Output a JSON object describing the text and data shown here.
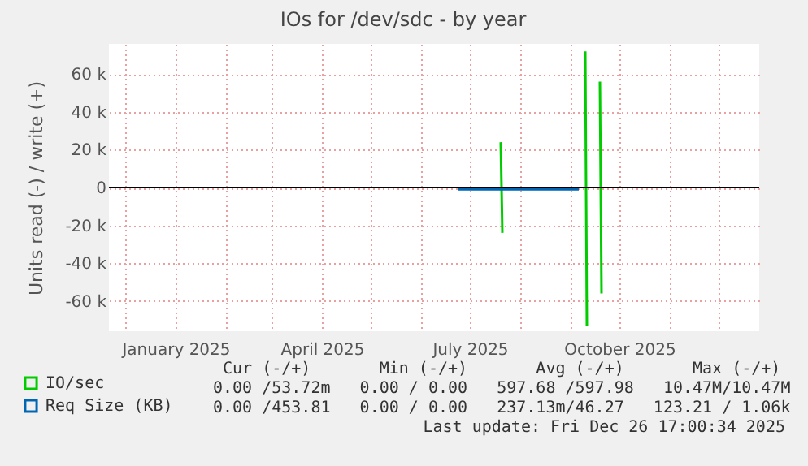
{
  "chart_data": {
    "type": "line",
    "title": "IOs for /dev/sdc - by year",
    "ylabel": "Units read (-) / write (+)",
    "xlim": [
      "2024-11-21",
      "2025-12-26"
    ],
    "xticks": [
      {
        "value": "2024-12-01",
        "label": null
      },
      {
        "value": "2025-01-01",
        "label": "January 2025"
      },
      {
        "value": "2025-02-01",
        "label": null
      },
      {
        "value": "2025-03-01",
        "label": null
      },
      {
        "value": "2025-04-01",
        "label": "April 2025"
      },
      {
        "value": "2025-05-01",
        "label": null
      },
      {
        "value": "2025-06-01",
        "label": null
      },
      {
        "value": "2025-07-01",
        "label": "July 2025"
      },
      {
        "value": "2025-08-01",
        "label": null
      },
      {
        "value": "2025-09-01",
        "label": null
      },
      {
        "value": "2025-10-01",
        "label": "October 2025"
      },
      {
        "value": "2025-11-01",
        "label": null
      },
      {
        "value": "2025-12-01",
        "label": null
      }
    ],
    "ylim": [
      -76000,
      76000
    ],
    "yticks": [
      {
        "value": -60000,
        "label": "-60 k"
      },
      {
        "value": -40000,
        "label": "-40 k"
      },
      {
        "value": -20000,
        "label": "-20 k"
      },
      0,
      {
        "value": 20000,
        "label": "20 k"
      },
      {
        "value": 40000,
        "label": "40 k"
      },
      {
        "value": 60000,
        "label": "60 k"
      }
    ],
    "grid": true,
    "legend": "bottom left",
    "ref_lines": [
      {
        "axis": "y",
        "value": 0,
        "color": "#000000"
      }
    ],
    "series": [
      {
        "name": "IO/sec",
        "color": "#00cc00",
        "x": [
          "2025-07-20",
          "2025-07-21",
          "2025-08-15",
          "2025-09-10",
          "2025-09-11",
          "2025-09-15",
          "2025-09-19",
          "2025-09-20"
        ],
        "values": [
          24000,
          -24000,
          null,
          72000,
          -73000,
          null,
          56000,
          -56000
        ]
      },
      {
        "name": "Req Size (KB)",
        "color": "#0066b3",
        "x": [
          "2025-06-24",
          "2025-09-06"
        ],
        "values": [
          -1000,
          -1000
        ]
      }
    ],
    "annotations": [
      " Cur (-/+)       Min (-/+)       Avg (-/+)       Max (-/+)",
      "0.00 /53.72m   0.00 / 0.00   597.68 /597.98   10.47M/10.47M",
      "0.00 /453.81   0.00 / 0.00   237.13m/46.27   123.21 / 1.06k",
      "Last update: Fri Dec 26 17:00:34 2025"
    ]
  }
}
